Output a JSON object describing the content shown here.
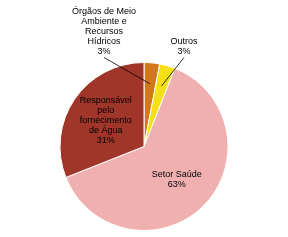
{
  "chart_data": {
    "type": "pie",
    "categories": [
      "Órgãos de Meio\nAmbiente e\nRecursos\nHídricos\n3%",
      "Outros\n3%",
      "Setor Saúde\n63%",
      "Responsável\npelo\nfornecimento\nde Água\n31%"
    ],
    "values": [
      3,
      3,
      63,
      31
    ],
    "colors": [
      "#d4781e",
      "#f5e018",
      "#f0b0b0",
      "#a0362a"
    ]
  }
}
